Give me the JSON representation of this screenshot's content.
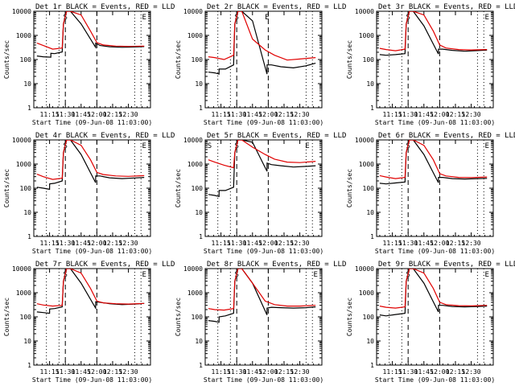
{
  "figure_title": "",
  "colors": {
    "events": "#000000",
    "lld": "#e00000",
    "background": "#ffffff"
  },
  "chart_data": [
    {
      "type": "line",
      "title": "Det 1r BLACK = Events, RED = LLD",
      "xlabel": "Start Time (09-Jun-08 11:03:00)",
      "ylabel": "Counts/sec",
      "ylim": [
        1,
        10000
      ],
      "yscale": "log",
      "x_ticks": [
        "11:15",
        "11:30",
        "11:45",
        "12:00",
        "12:15",
        "12:30"
      ],
      "y_ticks": [
        "1",
        "10",
        "100",
        "1000",
        "10000"
      ],
      "marks": [
        {
          "label": "S",
          "t": 11.5
        },
        {
          "label": "E",
          "t": 12.75
        }
      ],
      "series": [
        {
          "name": "BLACK = Events",
          "color": "#000000",
          "x": [
            11.05,
            11.15,
            11.27,
            11.271,
            11.33,
            11.45,
            11.47,
            11.52,
            11.58,
            11.75,
            11.98,
            11.981,
            12.05,
            12.2,
            12.4,
            12.6,
            12.75
          ],
          "values": [
            140,
            130,
            125,
            180,
            175,
            205,
            3000,
            12000,
            12000,
            3000,
            320,
            480,
            380,
            340,
            320,
            330,
            345
          ]
        },
        {
          "name": "RED = LLD",
          "color": "#e00000",
          "x": [
            11.05,
            11.15,
            11.3,
            11.45,
            11.47,
            11.52,
            11.58,
            11.75,
            11.9,
            12.0,
            12.1,
            12.3,
            12.5,
            12.75
          ],
          "values": [
            480,
            380,
            270,
            300,
            3000,
            12000,
            12000,
            7000,
            1500,
            500,
            400,
            360,
            350,
            360
          ]
        }
      ]
    },
    {
      "type": "line",
      "title": "Det 2r BLACK = Events, RED = LLD",
      "xlabel": "Start Time (09-Jun-08 11:03:00)",
      "ylabel": "Counts/sec",
      "ylim": [
        1,
        10000
      ],
      "yscale": "log",
      "x_ticks": [
        "11:15",
        "11:30",
        "11:45",
        "12:00",
        "12:15",
        "12:30"
      ],
      "y_ticks": [
        "1",
        "10",
        "100",
        "1000",
        "10000"
      ],
      "marks": [
        {
          "label": "S",
          "t": 11.5
        },
        {
          "label": "E",
          "t": 11.98
        }
      ],
      "series": [
        {
          "name": "BLACK = Events",
          "color": "#000000",
          "x": [
            11.05,
            11.15,
            11.22,
            11.221,
            11.32,
            11.45,
            11.47,
            11.52,
            11.58,
            11.75,
            11.98,
            11.981,
            12.05,
            12.2,
            12.4,
            12.6,
            12.75
          ],
          "values": [
            30,
            28,
            25,
            40,
            40,
            60,
            3000,
            12000,
            12000,
            4000,
            25,
            60,
            60,
            50,
            45,
            55,
            70
          ]
        },
        {
          "name": "RED = LLD",
          "color": "#e00000",
          "x": [
            11.05,
            11.15,
            11.3,
            11.45,
            11.47,
            11.52,
            11.58,
            11.75,
            11.95,
            12.1,
            12.3,
            12.5,
            12.75
          ],
          "values": [
            130,
            120,
            100,
            150,
            3000,
            12000,
            12000,
            700,
            250,
            150,
            95,
            105,
            120
          ]
        }
      ]
    },
    {
      "type": "line",
      "title": "Det 3r BLACK = Events, RED = LLD",
      "xlabel": "Start Time (09-Jun-08 11:03:00)",
      "ylabel": "Counts/sec",
      "ylim": [
        1,
        10000
      ],
      "yscale": "log",
      "x_ticks": [
        "11:15",
        "11:30",
        "11:45",
        "12:00",
        "12:15",
        "12:30"
      ],
      "y_ticks": [
        "1",
        "10",
        "100",
        "1000",
        "10000"
      ],
      "marks": [
        {
          "label": "S",
          "t": 11.5
        },
        {
          "label": "E",
          "t": 12.75
        }
      ],
      "series": [
        {
          "name": "BLACK = Events",
          "color": "#000000",
          "x": [
            11.05,
            11.15,
            11.3,
            11.45,
            11.47,
            11.52,
            11.58,
            11.75,
            11.98,
            11.981,
            12.05,
            12.2,
            12.4,
            12.6,
            12.75
          ],
          "values": [
            160,
            150,
            160,
            175,
            3000,
            12000,
            12000,
            2500,
            170,
            270,
            270,
            240,
            220,
            235,
            245
          ]
        },
        {
          "name": "RED = LLD",
          "color": "#e00000",
          "x": [
            11.05,
            11.15,
            11.3,
            11.45,
            11.47,
            11.52,
            11.58,
            11.75,
            11.9,
            12.0,
            12.1,
            12.3,
            12.5,
            12.75
          ],
          "values": [
            290,
            260,
            230,
            270,
            3000,
            12000,
            12000,
            7000,
            1500,
            400,
            300,
            260,
            250,
            260
          ]
        }
      ]
    },
    {
      "type": "line",
      "title": "Det 4r BLACK = Events, RED = LLD",
      "xlabel": "Start Time (09-Jun-08 11:03:00)",
      "ylabel": "Counts/sec",
      "ylim": [
        1,
        10000
      ],
      "yscale": "log",
      "x_ticks": [
        "11:15",
        "11:30",
        "11:45",
        "12:00",
        "12:15",
        "12:30"
      ],
      "y_ticks": [
        "1",
        "10",
        "100",
        "1000",
        "10000"
      ],
      "marks": [
        {
          "label": "S",
          "t": 11.5
        },
        {
          "label": "E",
          "t": 12.75
        }
      ],
      "series": [
        {
          "name": "BLACK = Events",
          "color": "#000000",
          "x": [
            11.05,
            11.15,
            11.25,
            11.251,
            11.33,
            11.45,
            11.47,
            11.52,
            11.58,
            11.75,
            11.98,
            11.981,
            12.05,
            12.2,
            12.4,
            12.6,
            12.75
          ],
          "values": [
            110,
            100,
            90,
            150,
            160,
            200,
            3000,
            12000,
            12000,
            2500,
            170,
            320,
            320,
            270,
            250,
            265,
            280
          ]
        },
        {
          "name": "RED = LLD",
          "color": "#e00000",
          "x": [
            11.05,
            11.15,
            11.3,
            11.45,
            11.47,
            11.52,
            11.58,
            11.75,
            11.9,
            12.0,
            12.1,
            12.3,
            12.5,
            12.75
          ],
          "values": [
            380,
            300,
            230,
            260,
            3000,
            12000,
            12000,
            6000,
            1500,
            450,
            370,
            320,
            310,
            330
          ]
        }
      ]
    },
    {
      "type": "line",
      "title": "Det 5r BLACK = Events, RED = LLD",
      "xlabel": "Start Time (09-Jun-08 11:03:00)",
      "ylabel": "Counts/sec",
      "ylim": [
        1,
        10000
      ],
      "yscale": "log",
      "x_ticks": [
        "11:15",
        "11:30",
        "11:45",
        "12:00",
        "12:15",
        "12:30"
      ],
      "y_ticks": [
        "1",
        "10",
        "100",
        "1000",
        "10000"
      ],
      "marks": [
        {
          "label": "S",
          "t": 11.07
        },
        {
          "label": "S",
          "t": 11.5
        },
        {
          "label": "E",
          "t": 12.62
        }
      ],
      "series": [
        {
          "name": "BLACK = Events",
          "color": "#000000",
          "x": [
            11.05,
            11.15,
            11.22,
            11.221,
            11.32,
            11.45,
            11.47,
            11.52,
            11.58,
            11.75,
            11.98,
            11.981,
            12.05,
            12.2,
            12.4,
            12.6,
            12.75
          ],
          "values": [
            55,
            50,
            45,
            80,
            80,
            110,
            3000,
            12000,
            12000,
            8000,
            500,
            1100,
            950,
            850,
            750,
            800,
            850
          ]
        },
        {
          "name": "RED = LLD",
          "color": "#e00000",
          "x": [
            11.05,
            11.15,
            11.3,
            11.45,
            11.47,
            11.52,
            11.58,
            11.75,
            11.95,
            12.1,
            12.3,
            12.5,
            12.75
          ],
          "values": [
            1500,
            1200,
            900,
            700,
            3000,
            12000,
            12000,
            5000,
            2500,
            1600,
            1200,
            1150,
            1300
          ]
        }
      ]
    },
    {
      "type": "line",
      "title": "Det 6r BLACK = Events, RED = LLD",
      "xlabel": "Start Time (09-Jun-08 11:03:00)",
      "ylabel": "Counts/sec",
      "ylim": [
        1,
        10000
      ],
      "yscale": "log",
      "x_ticks": [
        "11:15",
        "11:30",
        "11:45",
        "12:00",
        "12:15",
        "12:30"
      ],
      "y_ticks": [
        "1",
        "10",
        "100",
        "1000",
        "10000"
      ],
      "marks": [
        {
          "label": "S",
          "t": 11.5
        },
        {
          "label": "E",
          "t": 12.75
        }
      ],
      "series": [
        {
          "name": "BLACK = Events",
          "color": "#000000",
          "x": [
            11.05,
            11.15,
            11.3,
            11.45,
            11.47,
            11.52,
            11.58,
            11.75,
            11.98,
            11.981,
            12.05,
            12.2,
            12.4,
            12.6,
            12.75
          ],
          "values": [
            160,
            150,
            165,
            180,
            3000,
            12000,
            12000,
            2500,
            170,
            280,
            280,
            250,
            240,
            250,
            255
          ]
        },
        {
          "name": "RED = LLD",
          "color": "#e00000",
          "x": [
            11.05,
            11.15,
            11.3,
            11.45,
            11.47,
            11.52,
            11.58,
            11.75,
            11.9,
            12.0,
            12.1,
            12.3,
            12.5,
            12.75
          ],
          "values": [
            330,
            290,
            250,
            280,
            3000,
            12000,
            12000,
            6000,
            1500,
            400,
            320,
            280,
            275,
            290
          ]
        }
      ]
    },
    {
      "type": "line",
      "title": "Det 7r BLACK = Events, RED = LLD",
      "xlabel": "Start Time (09-Jun-08 11:03:00)",
      "ylabel": "Counts/sec",
      "ylim": [
        1,
        10000
      ],
      "yscale": "log",
      "x_ticks": [
        "11:15",
        "11:30",
        "11:45",
        "12:00",
        "12:15",
        "12:30"
      ],
      "y_ticks": [
        "1",
        "10",
        "100",
        "1000",
        "10000"
      ],
      "marks": [
        {
          "label": "S",
          "t": 11.5
        },
        {
          "label": "E",
          "t": 12.75
        }
      ],
      "series": [
        {
          "name": "BLACK = Events",
          "color": "#000000",
          "x": [
            11.05,
            11.15,
            11.25,
            11.251,
            11.33,
            11.45,
            11.47,
            11.52,
            11.58,
            11.75,
            11.98,
            11.981,
            12.05,
            12.2,
            12.4,
            12.6,
            12.75
          ],
          "values": [
            160,
            150,
            140,
            210,
            220,
            260,
            3000,
            12000,
            12000,
            2500,
            230,
            420,
            400,
            350,
            320,
            340,
            360
          ]
        },
        {
          "name": "RED = LLD",
          "color": "#e00000",
          "x": [
            11.05,
            11.15,
            11.3,
            11.45,
            11.47,
            11.52,
            11.58,
            11.75,
            11.9,
            12.0,
            12.1,
            12.3,
            12.5,
            12.75
          ],
          "values": [
            350,
            310,
            280,
            300,
            3000,
            12000,
            12000,
            6500,
            1500,
            450,
            380,
            350,
            340,
            360
          ]
        }
      ]
    },
    {
      "type": "line",
      "title": "Det 8r BLACK = Events, RED = LLD",
      "xlabel": "Start Time (09-Jun-08 11:03:00)",
      "ylabel": "Counts/sec",
      "ylim": [
        1,
        10000
      ],
      "yscale": "log",
      "x_ticks": [
        "11:15",
        "11:30",
        "11:45",
        "12:00",
        "12:15",
        "12:30"
      ],
      "y_ticks": [
        "1",
        "10",
        "100",
        "1000",
        "10000"
      ],
      "marks": [
        {
          "label": "S",
          "t": 11.5
        },
        {
          "label": "E",
          "t": 12.75
        }
      ],
      "series": [
        {
          "name": "BLACK = Events",
          "color": "#000000",
          "x": [
            11.05,
            11.15,
            11.22,
            11.221,
            11.32,
            11.45,
            11.47,
            11.52,
            11.58,
            11.75,
            11.98,
            11.981,
            12.05,
            12.2,
            12.4,
            12.6,
            12.75
          ],
          "values": [
            70,
            65,
            60,
            100,
            110,
            140,
            3000,
            12000,
            12000,
            2500,
            120,
            230,
            250,
            240,
            230,
            240,
            260
          ]
        },
        {
          "name": "RED = LLD",
          "color": "#e00000",
          "x": [
            11.05,
            11.15,
            11.3,
            11.45,
            11.47,
            11.52,
            11.58,
            11.75,
            11.95,
            12.1,
            12.3,
            12.5,
            12.75
          ],
          "values": [
            220,
            200,
            190,
            220,
            3000,
            12000,
            12000,
            2500,
            450,
            320,
            280,
            280,
            300
          ]
        }
      ]
    },
    {
      "type": "line",
      "title": "Det 9r BLACK = Events, RED = LLD",
      "xlabel": "Start Time (09-Jun-08 11:03:00)",
      "ylabel": "Counts/sec",
      "ylim": [
        1,
        10000
      ],
      "yscale": "log",
      "x_ticks": [
        "11:15",
        "11:30",
        "11:45",
        "12:00",
        "12:15",
        "12:30"
      ],
      "y_ticks": [
        "1",
        "10",
        "100",
        "1000",
        "10000"
      ],
      "marks": [
        {
          "label": "S",
          "t": 11.5
        },
        {
          "label": "E",
          "t": 12.75
        }
      ],
      "series": [
        {
          "name": "BLACK = Events",
          "color": "#000000",
          "x": [
            11.05,
            11.15,
            11.3,
            11.45,
            11.47,
            11.52,
            11.58,
            11.75,
            11.98,
            11.981,
            12.05,
            12.2,
            12.4,
            12.6,
            12.75
          ],
          "values": [
            120,
            110,
            125,
            140,
            3000,
            12000,
            12000,
            2500,
            160,
            300,
            300,
            270,
            260,
            270,
            280
          ]
        },
        {
          "name": "RED = LLD",
          "color": "#e00000",
          "x": [
            11.05,
            11.15,
            11.3,
            11.45,
            11.47,
            11.52,
            11.58,
            11.75,
            11.9,
            12.0,
            12.1,
            12.3,
            12.5,
            12.75
          ],
          "values": [
            280,
            250,
            230,
            260,
            3000,
            12000,
            12000,
            6500,
            1500,
            400,
            320,
            290,
            285,
            300
          ]
        }
      ]
    }
  ]
}
